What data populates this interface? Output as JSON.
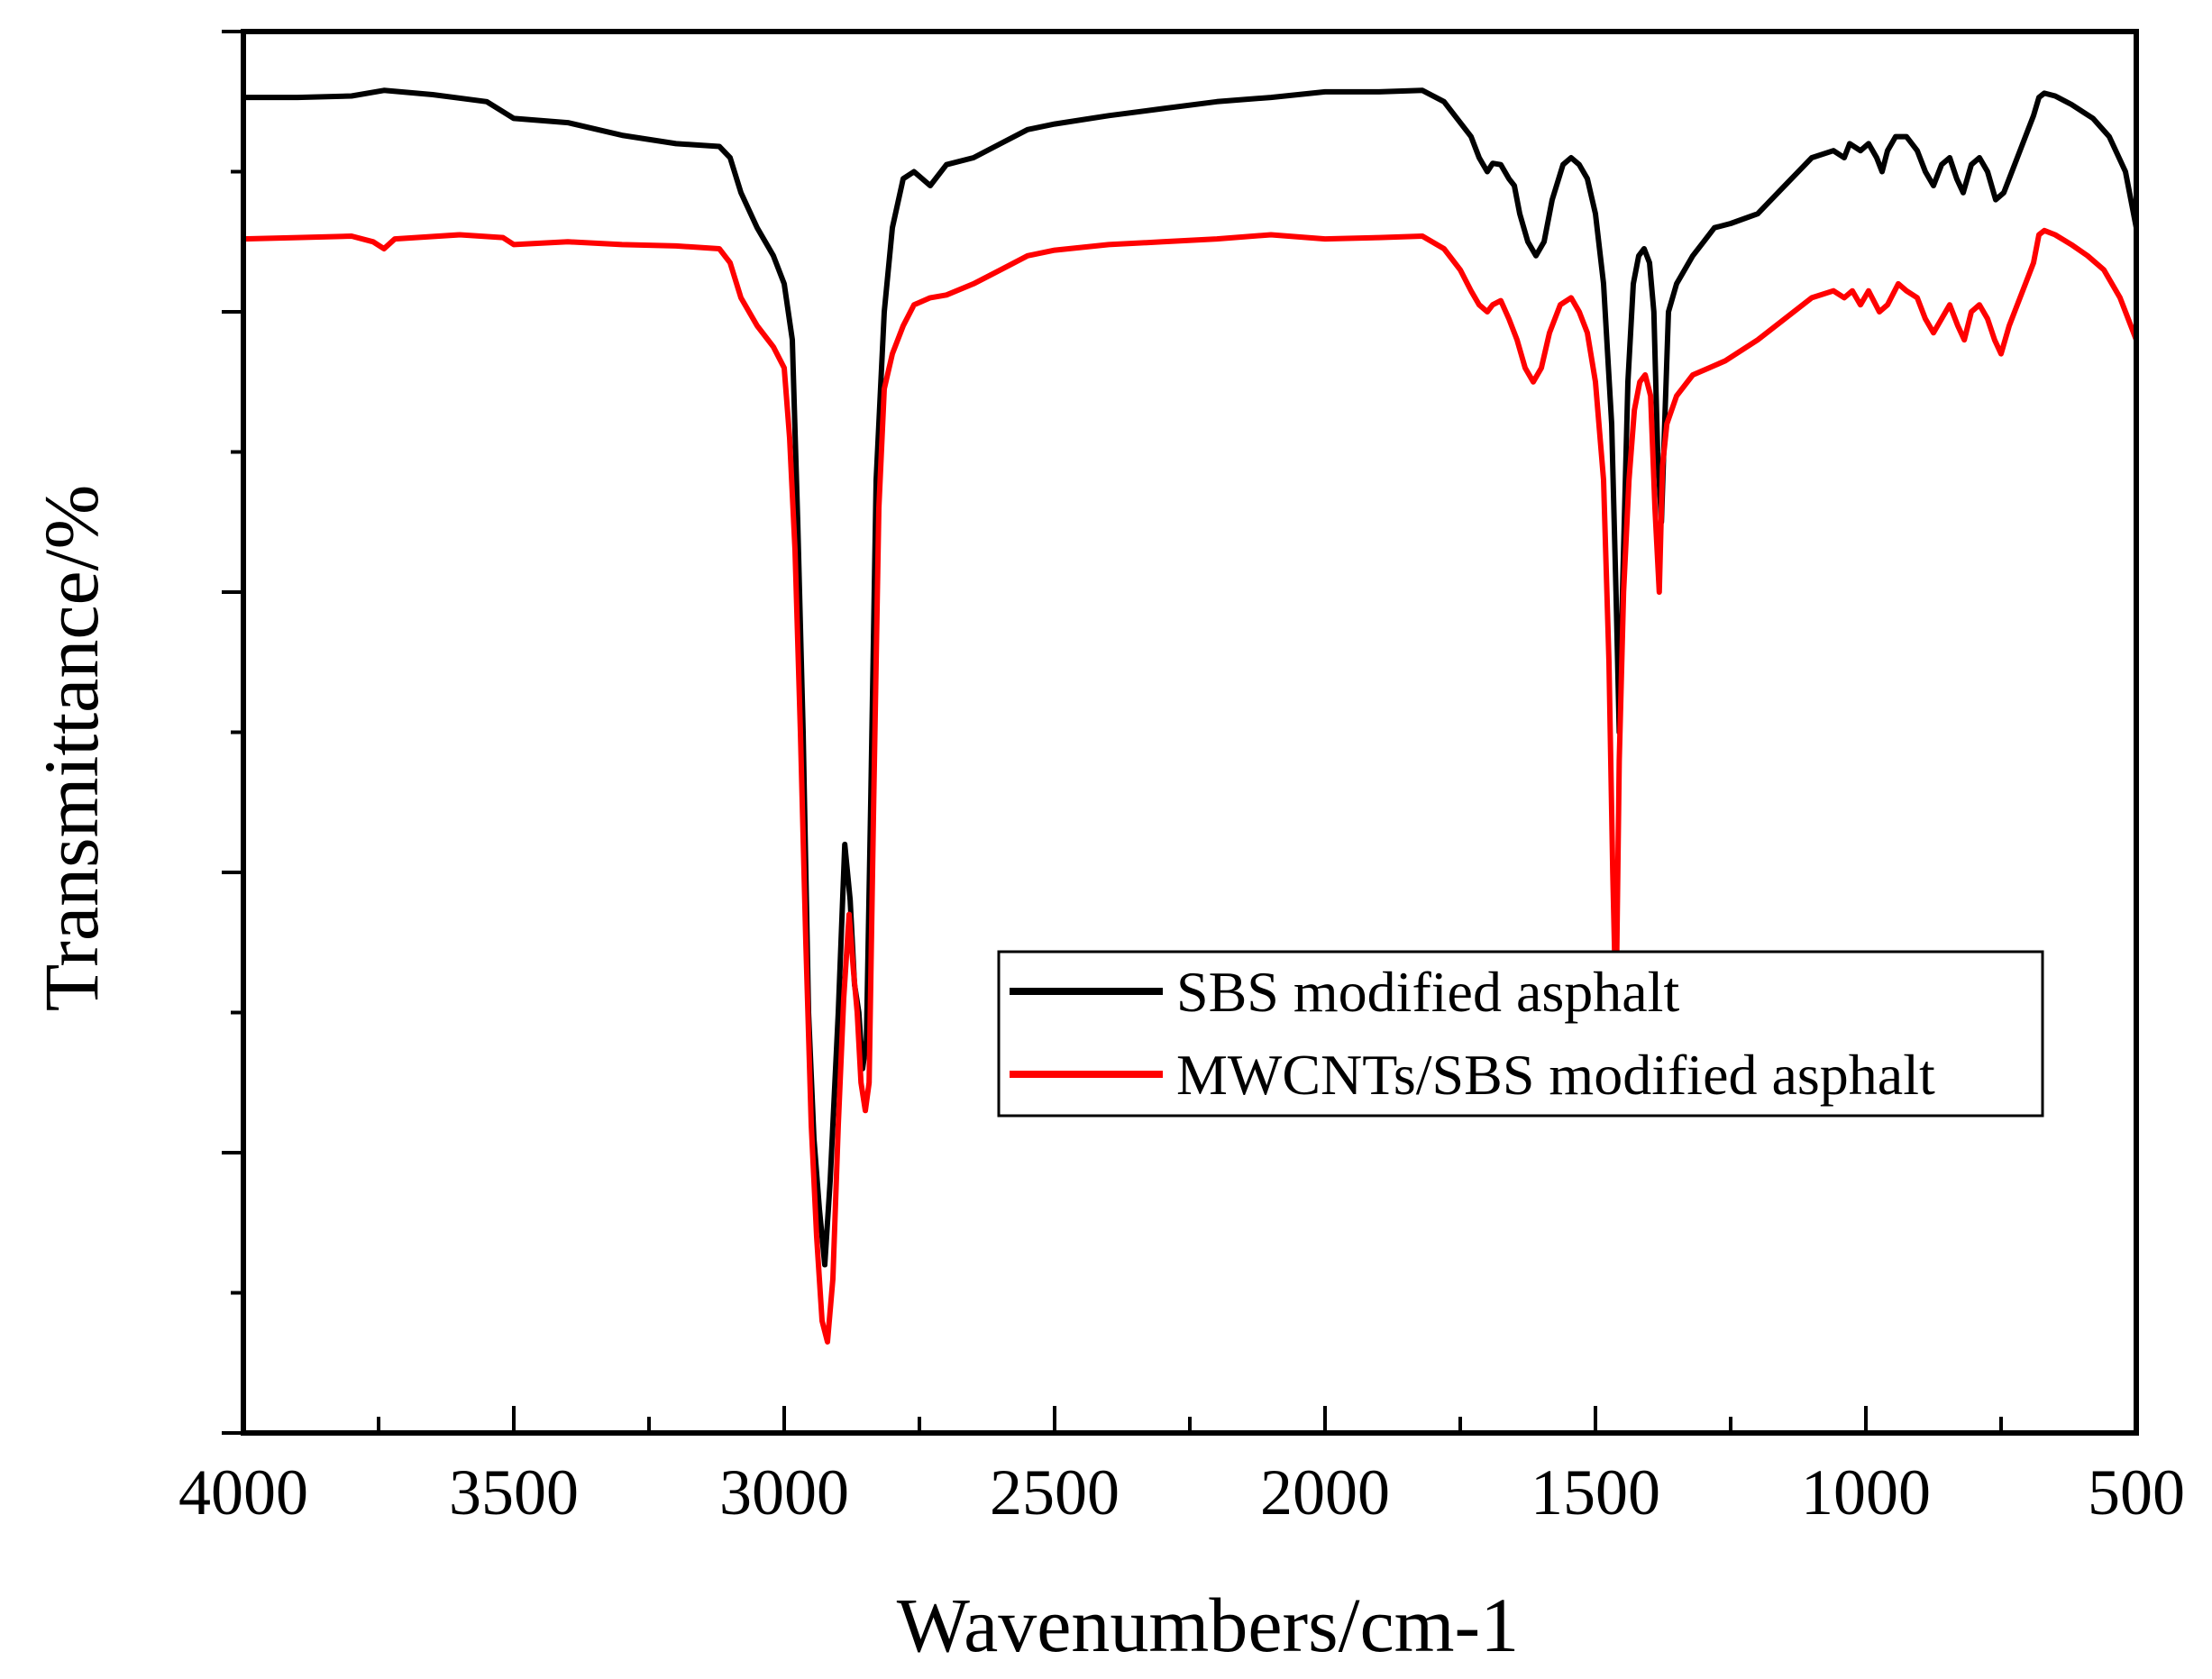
{
  "chart_data": {
    "type": "line",
    "title": "",
    "xlabel": "Wavenumbers/cm-1",
    "ylabel": "Transmittance/%",
    "xlim": [
      4000,
      500
    ],
    "ylim": [
      0,
      100
    ],
    "x_ticks": [
      "4000",
      "3500",
      "3000",
      "2500",
      "2000",
      "1500",
      "1000",
      "500"
    ],
    "y_tick_labels": "none",
    "legend": {
      "position": "center-right"
    },
    "series": [
      {
        "name": "SBS modified asphalt",
        "color": "#000000",
        "points": [
          [
            4000,
            95.3
          ],
          [
            3900,
            95.3
          ],
          [
            3800,
            95.4
          ],
          [
            3740,
            95.8
          ],
          [
            3650,
            95.5
          ],
          [
            3550,
            95.0
          ],
          [
            3500,
            93.8
          ],
          [
            3400,
            93.5
          ],
          [
            3300,
            92.6
          ],
          [
            3200,
            92.0
          ],
          [
            3120,
            91.8
          ],
          [
            3100,
            91.0
          ],
          [
            3080,
            88.5
          ],
          [
            3050,
            86.0
          ],
          [
            3020,
            84.0
          ],
          [
            3000,
            82.0
          ],
          [
            2985,
            78.0
          ],
          [
            2975,
            65.0
          ],
          [
            2965,
            50.0
          ],
          [
            2955,
            30.0
          ],
          [
            2945,
            21.0
          ],
          [
            2935,
            16.0
          ],
          [
            2925,
            12.0
          ],
          [
            2915,
            18.0
          ],
          [
            2900,
            30.0
          ],
          [
            2888,
            42.0
          ],
          [
            2878,
            38.0
          ],
          [
            2870,
            32.0
          ],
          [
            2862,
            30.0
          ],
          [
            2855,
            26.0
          ],
          [
            2848,
            28.0
          ],
          [
            2840,
            45.0
          ],
          [
            2830,
            68.0
          ],
          [
            2815,
            80.0
          ],
          [
            2800,
            86.0
          ],
          [
            2780,
            89.5
          ],
          [
            2760,
            90.0
          ],
          [
            2730,
            89.0
          ],
          [
            2700,
            90.5
          ],
          [
            2650,
            91.0
          ],
          [
            2600,
            92.0
          ],
          [
            2550,
            93.0
          ],
          [
            2500,
            93.4
          ],
          [
            2400,
            94.0
          ],
          [
            2300,
            94.5
          ],
          [
            2200,
            95.0
          ],
          [
            2100,
            95.3
          ],
          [
            2000,
            95.7
          ],
          [
            1900,
            95.7
          ],
          [
            1820,
            95.8
          ],
          [
            1780,
            95.0
          ],
          [
            1750,
            93.5
          ],
          [
            1730,
            92.5
          ],
          [
            1715,
            91.0
          ],
          [
            1700,
            90.0
          ],
          [
            1690,
            90.6
          ],
          [
            1675,
            90.5
          ],
          [
            1660,
            89.5
          ],
          [
            1650,
            89.0
          ],
          [
            1640,
            87.0
          ],
          [
            1625,
            85.0
          ],
          [
            1610,
            84.0
          ],
          [
            1595,
            85.0
          ],
          [
            1580,
            88.0
          ],
          [
            1560,
            90.5
          ],
          [
            1545,
            91.0
          ],
          [
            1530,
            90.5
          ],
          [
            1515,
            89.5
          ],
          [
            1500,
            87.0
          ],
          [
            1485,
            82.0
          ],
          [
            1470,
            72.0
          ],
          [
            1462,
            60.0
          ],
          [
            1456,
            50.0
          ],
          [
            1450,
            60.0
          ],
          [
            1440,
            75.0
          ],
          [
            1430,
            82.0
          ],
          [
            1420,
            84.0
          ],
          [
            1410,
            84.5
          ],
          [
            1400,
            83.5
          ],
          [
            1392,
            80.0
          ],
          [
            1385,
            70.0
          ],
          [
            1378,
            65.0
          ],
          [
            1372,
            72.0
          ],
          [
            1365,
            80.0
          ],
          [
            1350,
            82.0
          ],
          [
            1320,
            84.0
          ],
          [
            1300,
            85.0
          ],
          [
            1280,
            86.0
          ],
          [
            1250,
            86.3
          ],
          [
            1200,
            87.0
          ],
          [
            1150,
            89.0
          ],
          [
            1100,
            91.0
          ],
          [
            1060,
            91.5
          ],
          [
            1040,
            91.0
          ],
          [
            1030,
            92.0
          ],
          [
            1010,
            91.5
          ],
          [
            995,
            92.0
          ],
          [
            980,
            91.0
          ],
          [
            970,
            90.0
          ],
          [
            960,
            91.5
          ],
          [
            945,
            92.5
          ],
          [
            925,
            92.5
          ],
          [
            905,
            91.5
          ],
          [
            890,
            90.0
          ],
          [
            875,
            89.0
          ],
          [
            860,
            90.5
          ],
          [
            845,
            91.0
          ],
          [
            832,
            89.5
          ],
          [
            820,
            88.5
          ],
          [
            805,
            90.5
          ],
          [
            790,
            91.0
          ],
          [
            775,
            90.0
          ],
          [
            760,
            88.0
          ],
          [
            745,
            88.5
          ],
          [
            730,
            90.0
          ],
          [
            715,
            91.5
          ],
          [
            700,
            93.0
          ],
          [
            690,
            94.0
          ],
          [
            680,
            95.3
          ],
          [
            670,
            95.6
          ],
          [
            650,
            95.4
          ],
          [
            620,
            94.8
          ],
          [
            580,
            93.8
          ],
          [
            550,
            92.5
          ],
          [
            520,
            90.0
          ],
          [
            505,
            87.0
          ],
          [
            500,
            86.0
          ]
        ]
      },
      {
        "name": "MWCNTs/SBS modified asphalt",
        "color": "#ff0000",
        "points": [
          [
            4000,
            85.2
          ],
          [
            3900,
            85.3
          ],
          [
            3800,
            85.4
          ],
          [
            3760,
            85.0
          ],
          [
            3740,
            84.5
          ],
          [
            3720,
            85.2
          ],
          [
            3600,
            85.5
          ],
          [
            3520,
            85.3
          ],
          [
            3500,
            84.8
          ],
          [
            3400,
            85.0
          ],
          [
            3300,
            84.8
          ],
          [
            3200,
            84.7
          ],
          [
            3120,
            84.5
          ],
          [
            3100,
            83.5
          ],
          [
            3080,
            81.0
          ],
          [
            3050,
            79.0
          ],
          [
            3020,
            77.5
          ],
          [
            3000,
            76.0
          ],
          [
            2990,
            71.0
          ],
          [
            2980,
            63.0
          ],
          [
            2970,
            50.0
          ],
          [
            2960,
            35.0
          ],
          [
            2950,
            22.0
          ],
          [
            2940,
            14.0
          ],
          [
            2930,
            8.0
          ],
          [
            2920,
            6.5
          ],
          [
            2910,
            11.0
          ],
          [
            2900,
            22.0
          ],
          [
            2890,
            31.0
          ],
          [
            2880,
            37.0
          ],
          [
            2872,
            33.0
          ],
          [
            2865,
            30.0
          ],
          [
            2858,
            25.0
          ],
          [
            2850,
            23.0
          ],
          [
            2843,
            25.0
          ],
          [
            2835,
            44.0
          ],
          [
            2825,
            66.0
          ],
          [
            2815,
            74.5
          ],
          [
            2800,
            77.0
          ],
          [
            2780,
            79.0
          ],
          [
            2760,
            80.5
          ],
          [
            2730,
            81.0
          ],
          [
            2700,
            81.2
          ],
          [
            2650,
            82.0
          ],
          [
            2600,
            83.0
          ],
          [
            2550,
            84.0
          ],
          [
            2500,
            84.4
          ],
          [
            2400,
            84.8
          ],
          [
            2300,
            85.0
          ],
          [
            2200,
            85.2
          ],
          [
            2100,
            85.5
          ],
          [
            2000,
            85.2
          ],
          [
            1900,
            85.3
          ],
          [
            1820,
            85.4
          ],
          [
            1780,
            84.5
          ],
          [
            1750,
            83.0
          ],
          [
            1730,
            81.5
          ],
          [
            1715,
            80.5
          ],
          [
            1700,
            80.0
          ],
          [
            1690,
            80.5
          ],
          [
            1675,
            80.8
          ],
          [
            1660,
            79.5
          ],
          [
            1645,
            78.0
          ],
          [
            1630,
            76.0
          ],
          [
            1615,
            75.0
          ],
          [
            1600,
            76.0
          ],
          [
            1585,
            78.5
          ],
          [
            1565,
            80.5
          ],
          [
            1545,
            81.0
          ],
          [
            1530,
            80.0
          ],
          [
            1515,
            78.5
          ],
          [
            1500,
            75.0
          ],
          [
            1485,
            68.0
          ],
          [
            1475,
            55.0
          ],
          [
            1468,
            40.0
          ],
          [
            1462,
            30.0
          ],
          [
            1456,
            48.0
          ],
          [
            1448,
            60.0
          ],
          [
            1438,
            68.0
          ],
          [
            1428,
            73.0
          ],
          [
            1418,
            75.0
          ],
          [
            1408,
            75.5
          ],
          [
            1398,
            74.0
          ],
          [
            1390,
            66.0
          ],
          [
            1382,
            60.0
          ],
          [
            1376,
            69.0
          ],
          [
            1368,
            72.0
          ],
          [
            1350,
            74.0
          ],
          [
            1320,
            75.5
          ],
          [
            1290,
            76.0
          ],
          [
            1260,
            76.5
          ],
          [
            1200,
            78.0
          ],
          [
            1150,
            79.5
          ],
          [
            1100,
            81.0
          ],
          [
            1060,
            81.5
          ],
          [
            1040,
            81.0
          ],
          [
            1025,
            81.5
          ],
          [
            1010,
            80.5
          ],
          [
            995,
            81.5
          ],
          [
            975,
            80.0
          ],
          [
            960,
            80.5
          ],
          [
            940,
            82.0
          ],
          [
            925,
            81.5
          ],
          [
            905,
            81.0
          ],
          [
            890,
            79.5
          ],
          [
            875,
            78.5
          ],
          [
            860,
            79.5
          ],
          [
            845,
            80.5
          ],
          [
            830,
            79.0
          ],
          [
            818,
            78.0
          ],
          [
            805,
            80.0
          ],
          [
            790,
            80.5
          ],
          [
            775,
            79.5
          ],
          [
            762,
            78.0
          ],
          [
            750,
            77.0
          ],
          [
            735,
            79.0
          ],
          [
            720,
            80.5
          ],
          [
            705,
            82.0
          ],
          [
            690,
            83.5
          ],
          [
            680,
            85.5
          ],
          [
            670,
            85.8
          ],
          [
            650,
            85.5
          ],
          [
            620,
            84.8
          ],
          [
            590,
            84.0
          ],
          [
            560,
            83.0
          ],
          [
            530,
            81.0
          ],
          [
            510,
            79.0
          ],
          [
            500,
            78.0
          ]
        ]
      }
    ]
  }
}
